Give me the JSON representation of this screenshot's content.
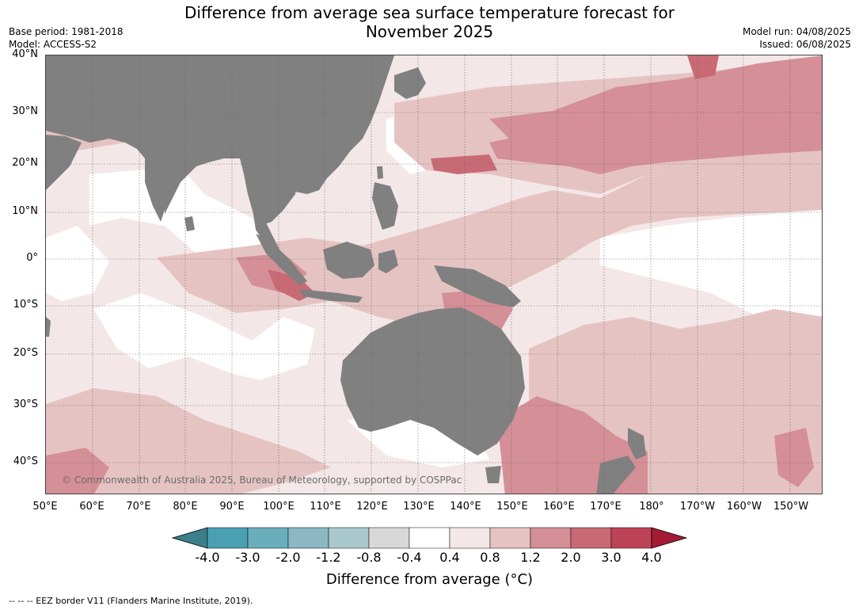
{
  "header": {
    "title_line1": "Difference from average sea surface temperature forecast for",
    "title_line2": "November 2025",
    "base_period": "Base period: 1981-2018",
    "model": "Model: ACCESS-S2",
    "model_run": "Model run: 04/08/2025",
    "issued": "Issued: 06/08/2025"
  },
  "map": {
    "lat_labels": [
      "40°N",
      "30°N",
      "20°N",
      "10°N",
      "0°",
      "10°S",
      "20°S",
      "30°S",
      "40°S"
    ],
    "lon_labels": [
      "50°E",
      "60°E",
      "70°E",
      "80°E",
      "90°E",
      "100°E",
      "110°E",
      "120°E",
      "130°E",
      "140°E",
      "150°E",
      "160°E",
      "170°E",
      "180°",
      "170°W",
      "160°W",
      "150°W"
    ],
    "copyright": "© Commonwealth of Australia 2025, Bureau of Meteorology, supported by COSPPac",
    "colors": {
      "land": "#808080",
      "band_0_4_to_0_8": "#f4e7e7",
      "band_0_8_to_1_2": "#e6c3c3",
      "band_1_2_to_2_0": "#d58f96",
      "band_2_0_to_3_0": "#c86a74",
      "gridline": "#666666"
    }
  },
  "colorbar": {
    "ticks": [
      "-4.0",
      "-3.0",
      "-2.0",
      "-1.2",
      "-0.8",
      "-0.4",
      "0.4",
      "0.8",
      "1.2",
      "2.0",
      "3.0",
      "4.0"
    ],
    "colors": [
      "#3a7f8a",
      "#4aa0b3",
      "#6aaebc",
      "#8bb8c3",
      "#a9c8cc",
      "#d8d8d8",
      "#ffffff",
      "#f4e7e7",
      "#e6c3c3",
      "#d58f96",
      "#c86a74",
      "#bd4456",
      "#a31a35"
    ],
    "label": "Difference from average (°C)"
  },
  "footer": {
    "eez_note": "--  --  -- EEZ border V11 (Flanders Marine Institute, 2019)."
  }
}
